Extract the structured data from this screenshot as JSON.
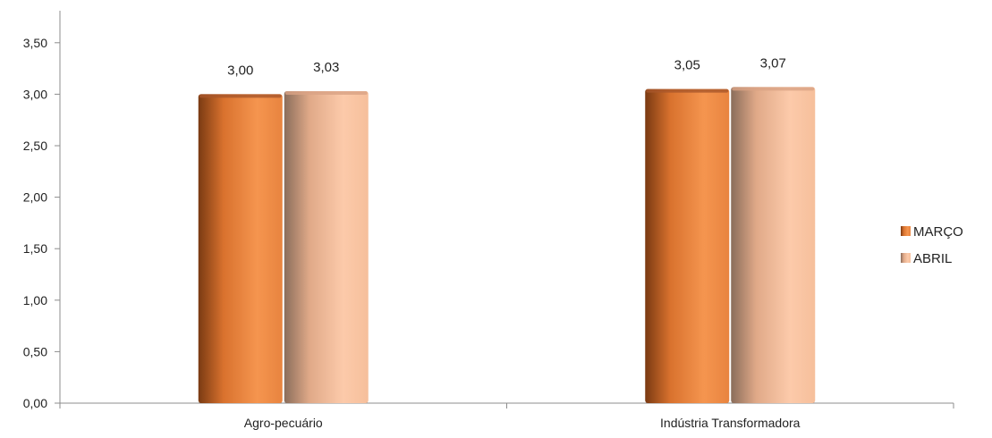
{
  "chart_data": {
    "type": "bar",
    "title": "",
    "xlabel": "",
    "ylabel": "",
    "categories": [
      "Agro-pecuário",
      "Indústria Transformadora"
    ],
    "series": [
      {
        "name": "MARÇO",
        "values": [
          3.0,
          3.05
        ],
        "labels": [
          "3,00",
          "3,05"
        ],
        "color": "#e8843f"
      },
      {
        "name": "ABRIL",
        "values": [
          3.03,
          3.07
        ],
        "labels": [
          "3,03",
          "3,07"
        ],
        "color": "#f6bf9b"
      }
    ],
    "ylim": [
      0,
      3.5
    ],
    "yticks": [
      0,
      0.5,
      1,
      1.5,
      2,
      2.5,
      3,
      3.5
    ],
    "ytick_labels": [
      "0,00",
      "0,50",
      "1,00",
      "1,50",
      "2,00",
      "2,50",
      "3,00",
      "3,50"
    ],
    "grid": false,
    "legend_position": "right"
  }
}
